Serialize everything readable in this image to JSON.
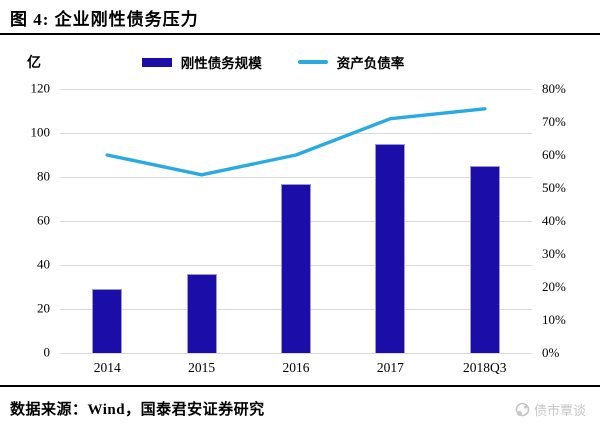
{
  "header": {
    "title": "图 4: 企业刚性债务压力"
  },
  "chart_data": {
    "type": "bar",
    "categories": [
      "2014",
      "2015",
      "2016",
      "2017",
      "2018Q3"
    ],
    "series": [
      {
        "name": "刚性债务规模",
        "type": "bar",
        "axis": "left",
        "unit": "亿",
        "values": [
          29,
          36,
          77,
          95,
          85
        ],
        "color": "#1B0EA8"
      },
      {
        "name": "资产负债率",
        "type": "line",
        "axis": "right",
        "unit": "%",
        "values": [
          60,
          54,
          60,
          71,
          74
        ],
        "color": "#29ABE2"
      }
    ],
    "left_axis": {
      "unit": "亿",
      "min": 0,
      "max": 120,
      "step": 20,
      "ticks": [
        "0",
        "20",
        "40",
        "60",
        "80",
        "100",
        "120"
      ]
    },
    "right_axis": {
      "min": 0,
      "max": 80,
      "step": 10,
      "ticks": [
        "0%",
        "10%",
        "20%",
        "30%",
        "40%",
        "50%",
        "60%",
        "70%",
        "80%"
      ]
    },
    "grid": true,
    "legend_position": "top-center"
  },
  "footer": {
    "source": "数据来源：Wind，国泰君安证券研究",
    "watermark": "债市覃谈"
  },
  "colors": {
    "bar": "#1B0EA8",
    "bar_edge": "#9A9AD8",
    "line": "#29ABE2",
    "grid": "#D9D9D9",
    "watermark": "#C6C6C6"
  }
}
